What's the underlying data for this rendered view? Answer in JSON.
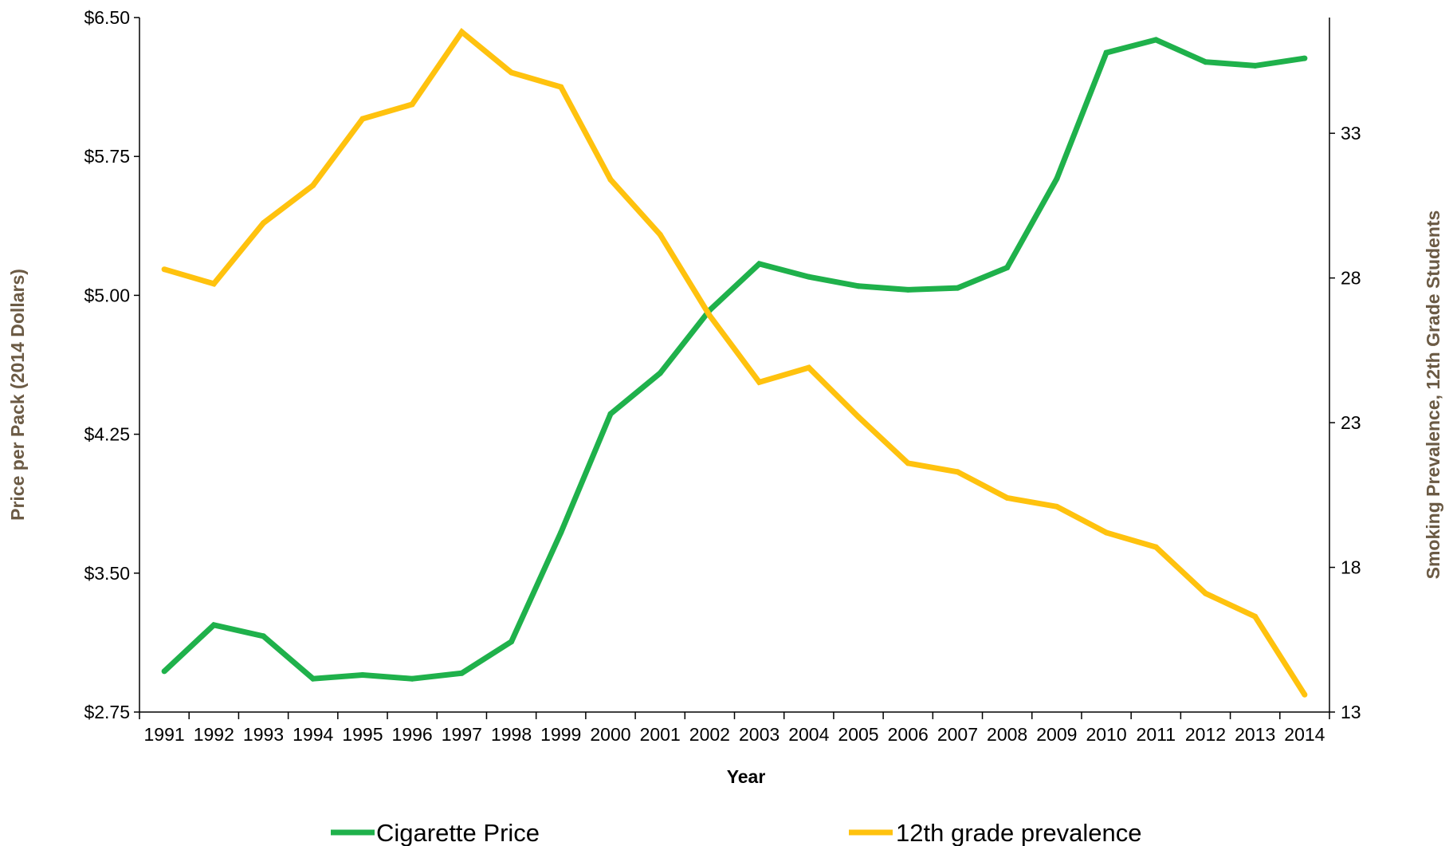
{
  "chart_data": {
    "type": "line",
    "xlabel": "Year",
    "ylabel_left": "Price per Pack (2014 Dollars)",
    "ylabel_right": "Smoking Prevalence, 12th Grade Students",
    "x": [
      "1991",
      "1992",
      "1993",
      "1994",
      "1995",
      "1996",
      "1997",
      "1998",
      "1999",
      "2000",
      "2001",
      "2002",
      "2003",
      "2004",
      "2005",
      "2006",
      "2007",
      "2008",
      "2009",
      "2010",
      "2011",
      "2012",
      "2013",
      "2014"
    ],
    "y_left": {
      "range": [
        2.75,
        6.5
      ],
      "ticks": [
        "$2.75",
        "$3.50",
        "$4.25",
        "$5.00",
        "$5.75",
        "$6.50"
      ],
      "tick_values": [
        2.75,
        3.5,
        4.25,
        5.0,
        5.75,
        6.5
      ]
    },
    "y_right": {
      "range": [
        13,
        37
      ],
      "ticks": [
        "13",
        "18",
        "23",
        "28",
        "33"
      ],
      "tick_values": [
        13,
        18,
        23,
        28,
        33
      ]
    },
    "grid": false,
    "legend_position": "bottom",
    "series": [
      {
        "name": "Cigarette Price",
        "axis": "left",
        "color": "#1fb14b",
        "values": [
          2.97,
          3.22,
          3.16,
          2.93,
          2.95,
          2.93,
          2.96,
          3.13,
          3.72,
          4.36,
          4.58,
          4.92,
          5.17,
          5.1,
          5.05,
          5.03,
          5.04,
          5.15,
          5.63,
          6.31,
          6.38,
          6.26,
          6.24,
          6.28
        ]
      },
      {
        "name": "12th grade prevalence",
        "axis": "right",
        "color": "#ffc20e",
        "values": [
          28.3,
          27.8,
          29.9,
          31.2,
          33.5,
          34.0,
          36.5,
          35.1,
          34.6,
          31.4,
          29.5,
          26.7,
          24.4,
          24.9,
          23.2,
          21.6,
          21.3,
          20.4,
          20.1,
          19.2,
          18.7,
          17.1,
          16.3,
          13.6
        ]
      }
    ]
  }
}
